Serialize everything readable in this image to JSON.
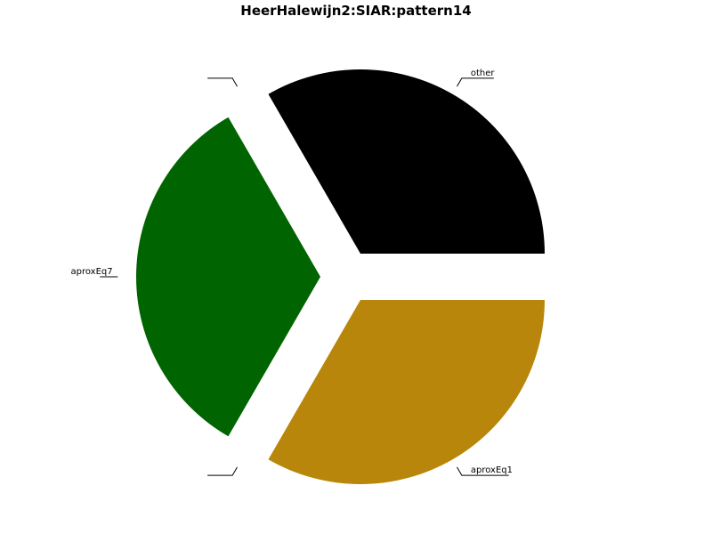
{
  "chart_data": {
    "type": "pie",
    "title": "HeerHalewijn2:SIAR:pattern14",
    "slices": [
      {
        "label": "other",
        "value": 1,
        "color": "#000000",
        "exploded": true
      },
      {
        "label": "",
        "value": 0,
        "color": "#000000",
        "exploded": true
      },
      {
        "label": "aproxEq7",
        "value": 1,
        "color": "#006400",
        "exploded": true
      },
      {
        "label": "",
        "value": 0,
        "color": "#000000",
        "exploded": true
      },
      {
        "label": "aproxEq1",
        "value": 1,
        "color": "#b8860b",
        "exploded": true
      }
    ],
    "start_angle_deg": 0,
    "direction": "counterclockwise",
    "legend": "none"
  }
}
